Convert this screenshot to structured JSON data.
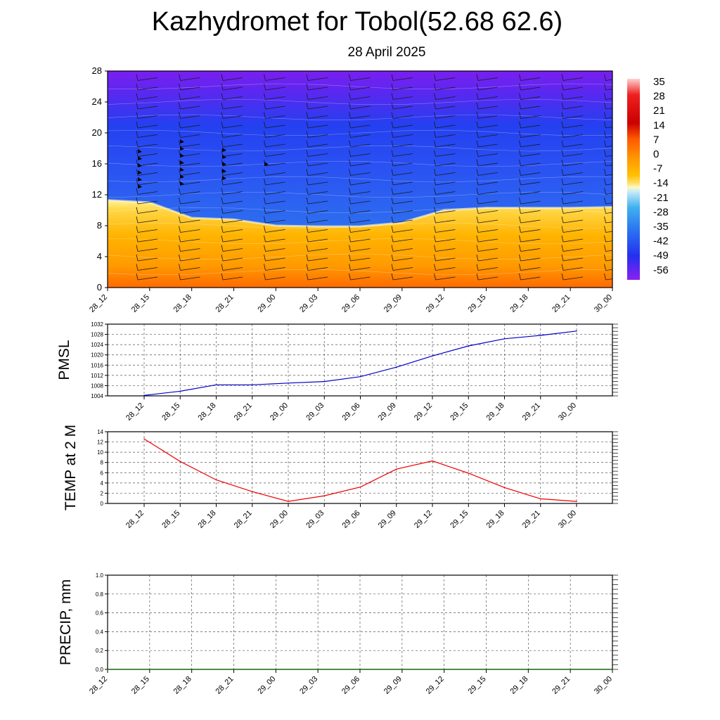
{
  "header": {
    "title": "Kazhydromet for Tobol(52.68 62.6)",
    "subtitle": "28 April 2025"
  },
  "chart_data": [
    {
      "type": "heatmap",
      "name": "vertical-cross-section",
      "x": [
        "28_12",
        "28_15",
        "28_18",
        "28_21",
        "29_00",
        "29_03",
        "29_06",
        "29_09",
        "29_12",
        "29_15",
        "29_18",
        "29_21",
        "30_00"
      ],
      "y_ticks": [
        "0",
        "4",
        "8",
        "12",
        "16",
        "20",
        "24",
        "28"
      ],
      "ylim": [
        0,
        28
      ],
      "freezing_level": [
        11.3,
        11.0,
        9.0,
        8.8,
        8.0,
        7.9,
        7.9,
        8.4,
        10.0,
        10.3,
        10.3,
        10.3,
        10.4
      ],
      "colorbar_labels": [
        "35",
        "28",
        "21",
        "14",
        "7",
        "0",
        "-7",
        "-14",
        "-21",
        "-28",
        "-35",
        "-42",
        "-49",
        "-56"
      ],
      "colors": {
        "warm_bottom": "#ff6a00",
        "warm_mid": "#ffb300",
        "freeze": "#fff3a0",
        "cold_light": "#9fd8f2",
        "cold_mid": "#2f7df0",
        "cold_top": "#7a1ff0"
      }
    },
    {
      "type": "line",
      "name": "pmsl",
      "ylabel": "PMSL",
      "x": [
        "28_12",
        "28_15",
        "28_18",
        "28_21",
        "29_00",
        "29_03",
        "29_06",
        "29_09",
        "29_12",
        "29_15",
        "29_18",
        "29_21",
        "30_00"
      ],
      "values": [
        1004.2,
        1005.8,
        1008.3,
        1008.3,
        1009.0,
        1009.6,
        1011.5,
        1015.2,
        1019.6,
        1023.5,
        1026.3,
        1027.6,
        1029.3
      ],
      "ylim": [
        1004,
        1032
      ],
      "y_ticks": [
        "1004",
        "1008",
        "1012",
        "1016",
        "1020",
        "1024",
        "1028",
        "1032"
      ],
      "color": "#0000cc"
    },
    {
      "type": "line",
      "name": "temp2m",
      "ylabel": "TEMP at 2 M",
      "x": [
        "28_12",
        "28_15",
        "28_18",
        "28_21",
        "29_00",
        "29_03",
        "29_06",
        "29_09",
        "29_12",
        "29_15",
        "29_18",
        "29_21",
        "30_00"
      ],
      "values": [
        12.6,
        8.2,
        4.6,
        2.3,
        0.4,
        1.5,
        3.2,
        6.7,
        8.3,
        5.9,
        3.1,
        0.9,
        0.4
      ],
      "ylim": [
        0,
        14
      ],
      "y_ticks": [
        "0",
        "2",
        "4",
        "6",
        "8",
        "10",
        "12",
        "14"
      ],
      "color": "#ee0000"
    },
    {
      "type": "line",
      "name": "precip",
      "ylabel": "PRECIP, mm",
      "x": [
        "28_12",
        "28_15",
        "28_18",
        "28_21",
        "29_00",
        "29_03",
        "29_06",
        "29_09",
        "29_12",
        "29_15",
        "29_18",
        "29_21",
        "30_00"
      ],
      "values": [
        0,
        0,
        0,
        0,
        0,
        0,
        0,
        0,
        0,
        0,
        0,
        0,
        0
      ],
      "ylim": [
        0,
        1.0
      ],
      "y_ticks": [
        "0.0",
        "0.2",
        "0.4",
        "0.6",
        "0.8",
        "1.0"
      ],
      "color": "#006600"
    }
  ]
}
